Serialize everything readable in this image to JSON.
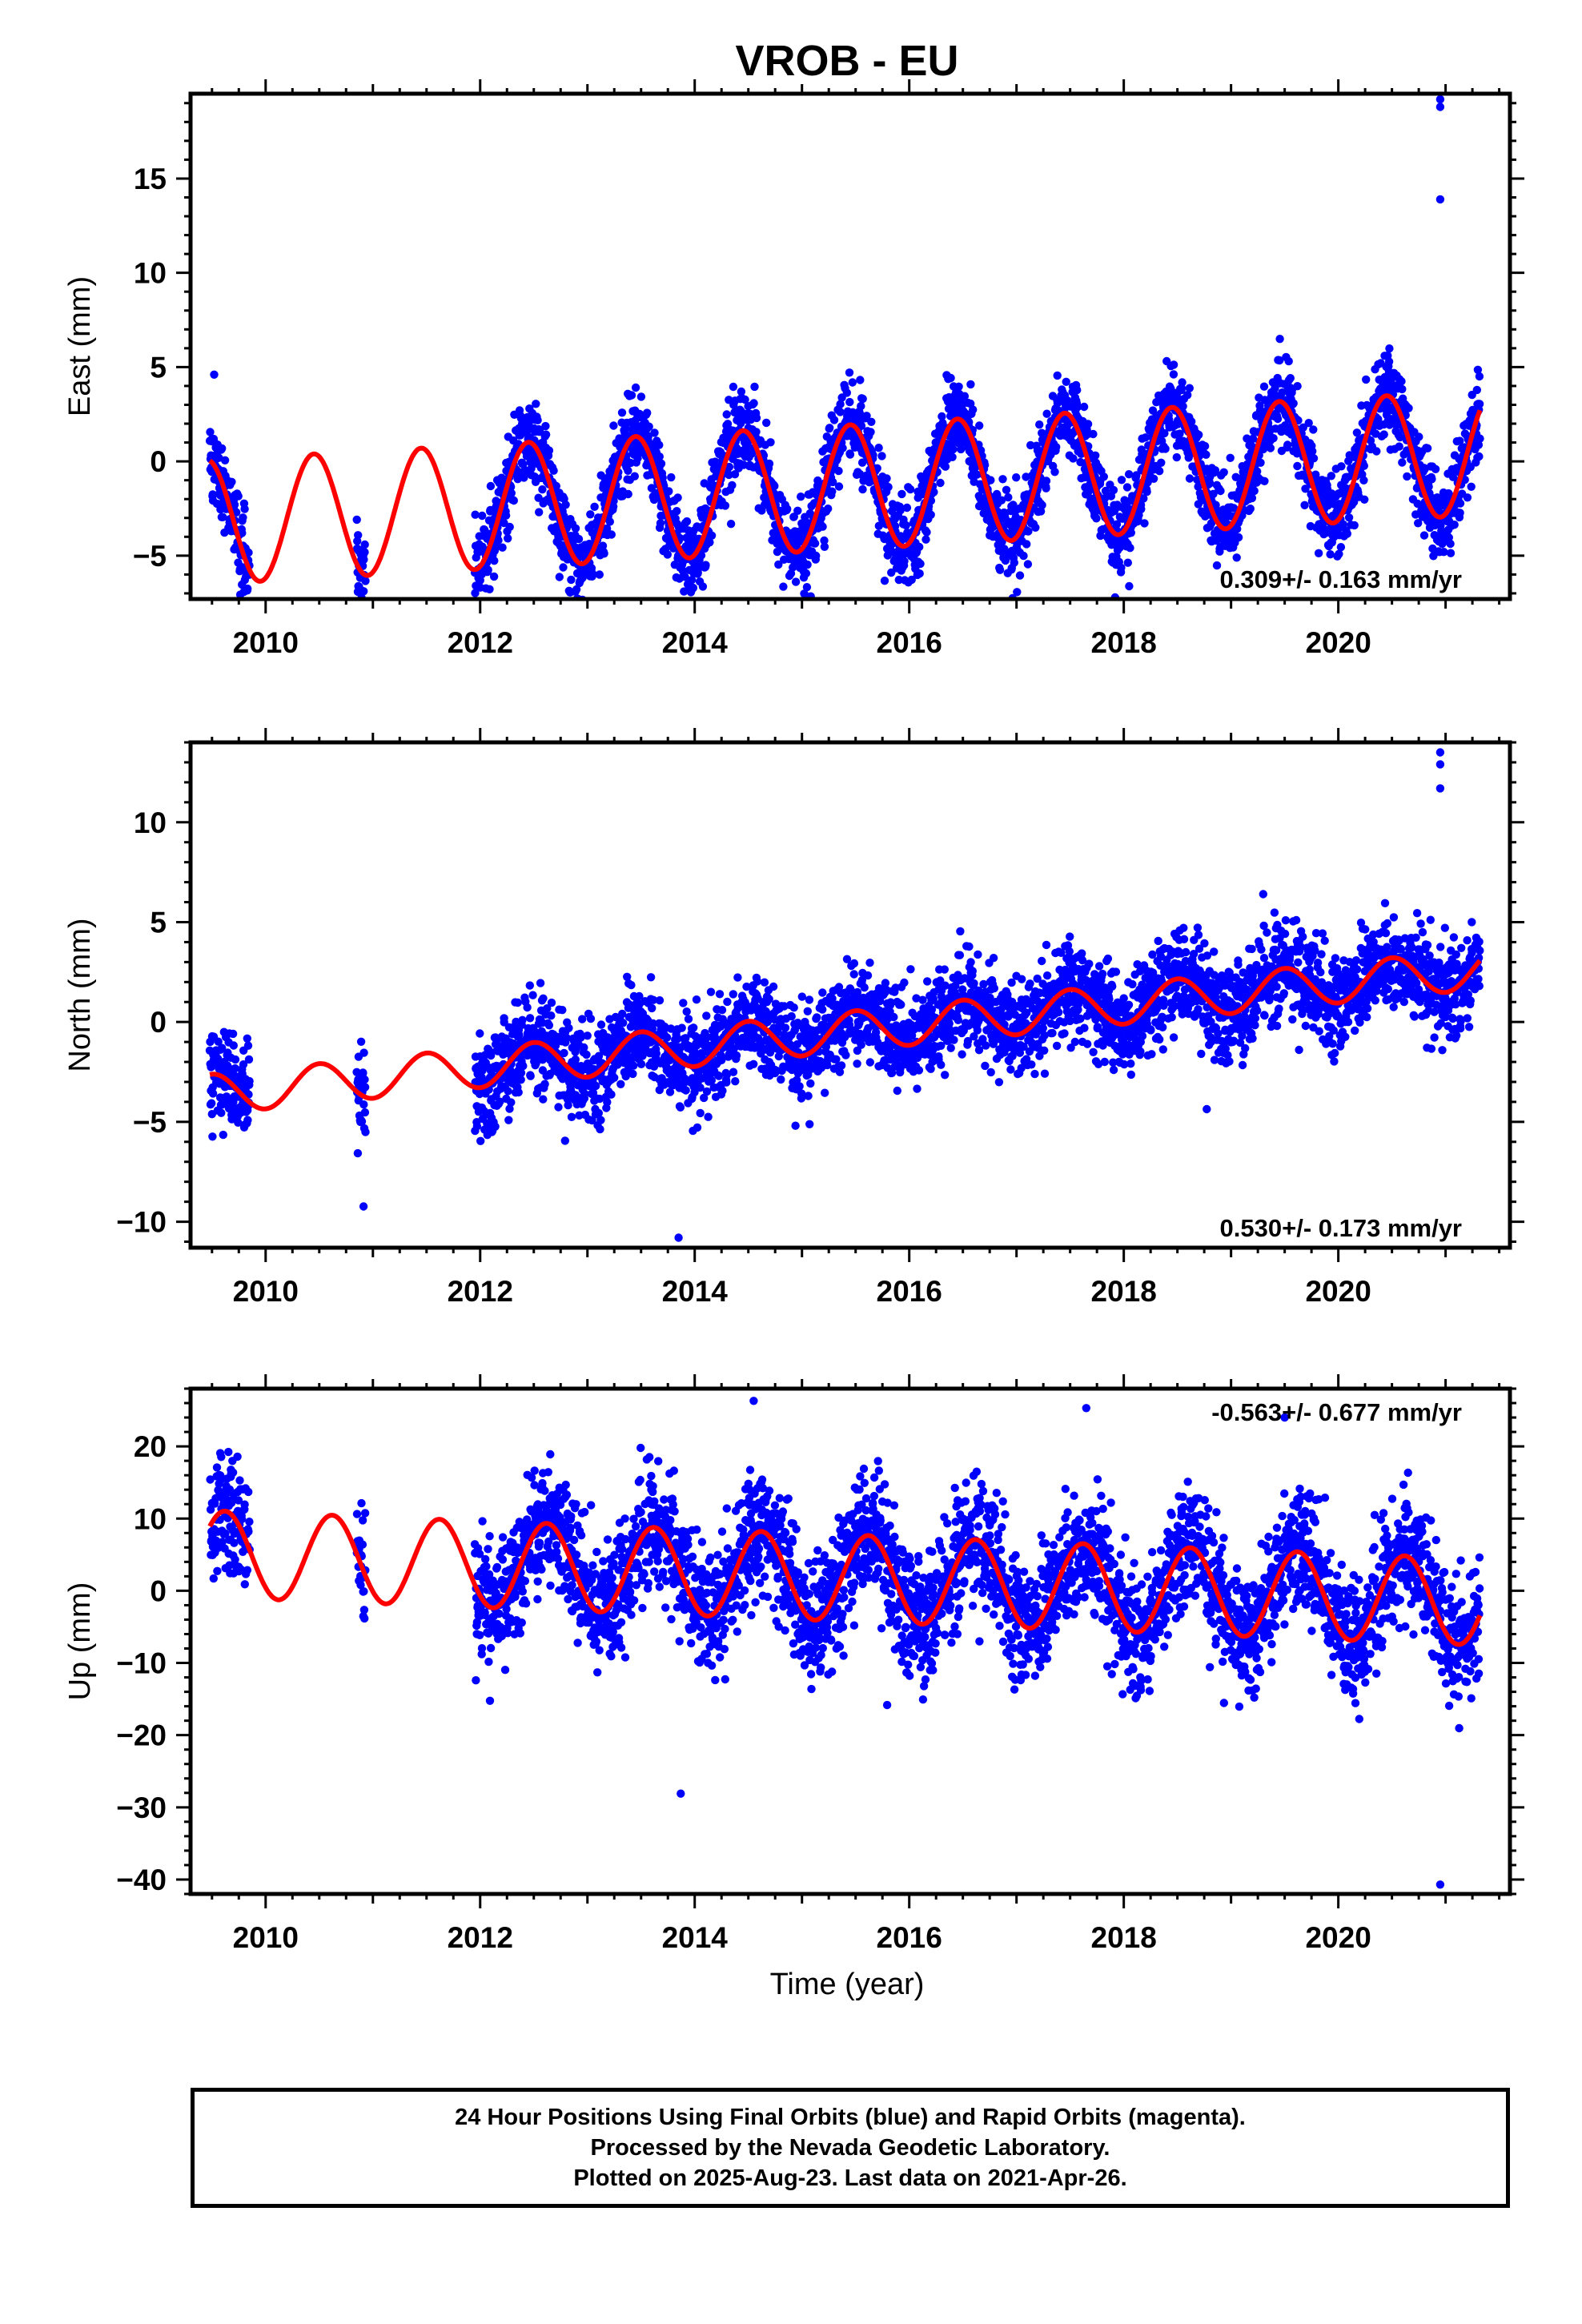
{
  "title": "VROB - EU",
  "colors": {
    "final_orbits": "#0000ff",
    "model": "#ff0000",
    "axes": "#000000"
  },
  "xlabel": "Time (year)",
  "chart_data": [
    {
      "type": "scatter",
      "name": "east",
      "ylabel": "East (mm)",
      "xlim": [
        2009.3,
        2021.6
      ],
      "ylim": [
        -7.3,
        19.5
      ],
      "yticks": [
        -5,
        0,
        5,
        10,
        15
      ],
      "ytick_labels": [
        "−5",
        "0",
        "5",
        "10",
        "15"
      ],
      "xticks": [
        2010,
        2012,
        2014,
        2016,
        2018,
        2020
      ],
      "xtick_labels": [
        "2010",
        "2012",
        "2014",
        "2016",
        "2018",
        "2020"
      ],
      "rate_label": "0.309+/- 0.163 mm/yr",
      "model": {
        "offset": -1.5,
        "rate": 0.309,
        "t0": 2015.0,
        "amplitude": 3.3,
        "peak_phase": 0.45
      },
      "data_spans": [
        [
          2009.48,
          2009.85
        ],
        [
          2010.85,
          2010.93
        ],
        [
          2011.95,
          2021.32
        ]
      ],
      "scatter_sd": 1.1,
      "outliers": [
        [
          2020.95,
          19.2
        ],
        [
          2020.95,
          18.8
        ],
        [
          2020.95,
          13.9
        ],
        [
          2013.9,
          -6.9
        ],
        [
          2009.52,
          4.6
        ]
      ]
    },
    {
      "type": "scatter",
      "name": "north",
      "ylabel": "North (mm)",
      "xlim": [
        2009.3,
        2021.6
      ],
      "ylim": [
        -11.3,
        14.0
      ],
      "yticks": [
        -10,
        -5,
        0,
        5,
        10
      ],
      "ytick_labels": [
        "−10",
        "−5",
        "0",
        "5",
        "10"
      ],
      "xticks": [
        2010,
        2012,
        2014,
        2016,
        2018,
        2020
      ],
      "xtick_labels": [
        "2010",
        "2012",
        "2014",
        "2016",
        "2018",
        "2020"
      ],
      "rate_label": "0.530+/- 0.173 mm/yr",
      "model": {
        "offset": -0.7,
        "rate": 0.53,
        "t0": 2015.0,
        "amplitude": 1.0,
        "peak_phase": 0.5
      },
      "data_spans": [
        [
          2009.48,
          2009.85
        ],
        [
          2010.85,
          2010.93
        ],
        [
          2011.95,
          2021.32
        ]
      ],
      "scatter_sd": 1.15,
      "outliers": [
        [
          2020.95,
          13.5
        ],
        [
          2020.95,
          12.9
        ],
        [
          2020.95,
          11.7
        ],
        [
          2013.85,
          -10.8
        ],
        [
          2019.3,
          6.4
        ]
      ]
    },
    {
      "type": "scatter",
      "name": "up",
      "ylabel": "Up (mm)",
      "xlim": [
        2009.3,
        2021.6
      ],
      "ylim": [
        -42.0,
        28.0
      ],
      "yticks": [
        -40,
        -30,
        -20,
        -10,
        0,
        10,
        20
      ],
      "ytick_labels": [
        "−40",
        "−30",
        "−20",
        "−10",
        "0",
        "10",
        "20"
      ],
      "xticks": [
        2010,
        2012,
        2014,
        2016,
        2018,
        2020
      ],
      "xtick_labels": [
        "2010",
        "2012",
        "2014",
        "2016",
        "2018",
        "2020"
      ],
      "rate_label": "-0.563+/- 0.677 mm/yr",
      "model": {
        "offset": 2.0,
        "rate": -0.563,
        "t0": 2015.0,
        "amplitude": 6.0,
        "peak_phase": 0.62
      },
      "data_spans": [
        [
          2009.48,
          2009.85
        ],
        [
          2010.85,
          2010.93
        ],
        [
          2011.95,
          2021.32
        ]
      ],
      "scatter_sd": 4.2,
      "outliers": [
        [
          2020.95,
          -40.7
        ],
        [
          2013.87,
          -28.1
        ],
        [
          2014.55,
          26.3
        ],
        [
          2017.65,
          25.3
        ],
        [
          2019.5,
          24.0
        ]
      ]
    }
  ],
  "footer": {
    "line1": "24 Hour Positions Using Final Orbits (blue) and Rapid Orbits (magenta).",
    "line2": "Processed by the Nevada Geodetic Laboratory.",
    "line3": "Plotted on 2025-Aug-23. Last data on 2021-Apr-26."
  }
}
